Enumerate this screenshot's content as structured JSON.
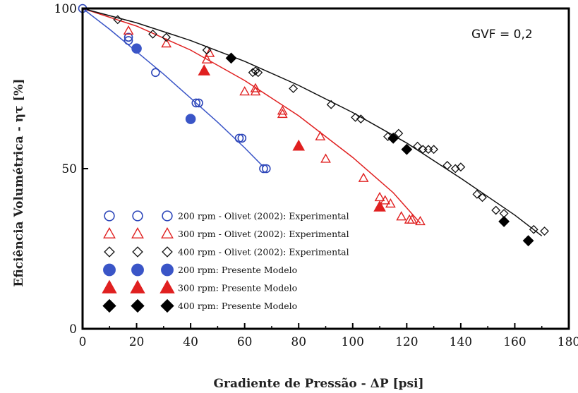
{
  "chart_data": {
    "type": "scatter",
    "title": "",
    "annotation": "GVF = 0,2",
    "xlabel": "Gradiente de Pressão - ΔP [psi]",
    "ylabel": "Eficiência Volumétrica - ητ [%]",
    "xlim": [
      0,
      180
    ],
    "ylim": [
      0,
      100
    ],
    "x_ticks": [
      "0",
      "20",
      "40",
      "60",
      "80",
      "100",
      "120",
      "140",
      "160",
      "180"
    ],
    "y_ticks": [
      "0",
      "50",
      "100"
    ],
    "grid": false,
    "legend_position": "bottom-left",
    "series": [
      {
        "name": "200 rpm - Olivet (2002): Experimental",
        "marker": "circle-open",
        "color": "#2d46b9",
        "x": [
          0,
          17,
          17,
          27,
          42,
          43,
          58,
          59,
          67,
          68
        ],
        "y": [
          100,
          91,
          90,
          80,
          70.5,
          70.5,
          59.5,
          59.5,
          50,
          50
        ]
      },
      {
        "name": "300 rpm - Olivet (2002): Experimental",
        "marker": "triangle-open",
        "color": "#e02020",
        "x": [
          17,
          31,
          47,
          46,
          60,
          64,
          64,
          74,
          74,
          88,
          90,
          104,
          110,
          112,
          114,
          118,
          121,
          122,
          125
        ],
        "y": [
          93,
          89,
          86,
          84,
          74,
          75,
          74,
          68,
          67,
          60,
          53,
          47,
          41,
          40,
          39,
          35,
          34,
          34,
          33.5
        ]
      },
      {
        "name": "400 rpm - Olivet (2002): Experimental",
        "marker": "diamond-open",
        "color": "#111111",
        "x": [
          13,
          26,
          31,
          46,
          63,
          64,
          65,
          78,
          92,
          101,
          103,
          113,
          117,
          124,
          126,
          128,
          130,
          135,
          138,
          140,
          146,
          148,
          153,
          156,
          167,
          171
        ],
        "y": [
          96.5,
          92,
          91,
          87,
          80,
          80.5,
          80,
          75,
          70,
          66,
          65.5,
          60,
          61,
          57,
          56,
          56,
          56,
          51,
          50,
          50.5,
          42,
          41,
          37,
          36,
          31,
          30.5
        ]
      },
      {
        "name": "200 rpm: Presente Modelo",
        "marker": "circle-filled",
        "color": "#3a55c7",
        "x": [
          20,
          40
        ],
        "y": [
          87.5,
          65.5
        ]
      },
      {
        "name": "300 rpm: Presente Modelo",
        "marker": "triangle-filled",
        "color": "#e02020",
        "x": [
          45,
          80,
          110
        ],
        "y": [
          80.5,
          57,
          38
        ]
      },
      {
        "name": "400 rpm: Presente Modelo",
        "marker": "diamond-filled",
        "color": "#000000",
        "x": [
          55,
          115,
          120,
          156,
          165
        ],
        "y": [
          84.5,
          59.5,
          56,
          33.5,
          27.5
        ]
      }
    ],
    "fit_lines": [
      {
        "series": "200 rpm",
        "color": "#3a55c7",
        "x": [
          0,
          10,
          20,
          30,
          40,
          50,
          60,
          67
        ],
        "y": [
          100,
          93.5,
          86.5,
          79.5,
          72,
          64.5,
          56.5,
          50.5
        ]
      },
      {
        "series": "300 rpm",
        "color": "#e02020",
        "x": [
          0,
          20,
          40,
          60,
          80,
          100,
          115,
          125
        ],
        "y": [
          100,
          94.5,
          87,
          77.5,
          66.5,
          53.5,
          42.5,
          33
        ]
      },
      {
        "series": "400 rpm",
        "color": "#111111",
        "x": [
          0,
          20,
          40,
          60,
          80,
          100,
          120,
          140,
          160,
          170
        ],
        "y": [
          100,
          95.5,
          90,
          83.5,
          76,
          67.5,
          58,
          47,
          35.5,
          29
        ]
      }
    ],
    "legend_glyph_repeats": 3
  }
}
